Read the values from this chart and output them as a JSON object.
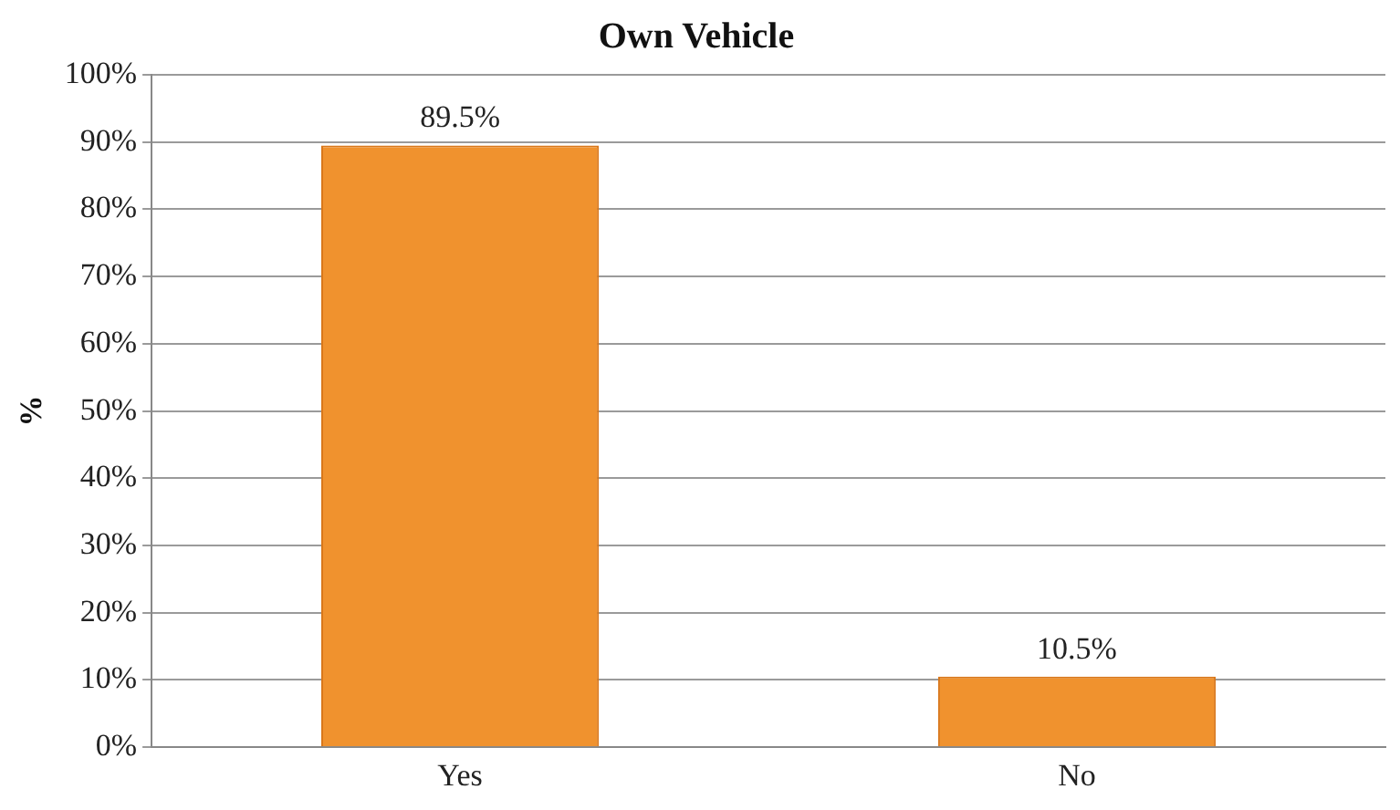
{
  "chart_data": {
    "type": "bar",
    "title": "Own Vehicle",
    "ylabel": "%",
    "categories": [
      "Yes",
      "No"
    ],
    "values": [
      89.5,
      10.5
    ],
    "value_labels": [
      "89.5%",
      "10.5%"
    ],
    "color": "#f0922e",
    "ylim": [
      0,
      100
    ],
    "yticks": [
      {
        "value": 0,
        "label": "0%"
      },
      {
        "value": 10,
        "label": "10%"
      },
      {
        "value": 20,
        "label": "20%"
      },
      {
        "value": 30,
        "label": "30%"
      },
      {
        "value": 40,
        "label": "40%"
      },
      {
        "value": 50,
        "label": "50%"
      },
      {
        "value": 60,
        "label": "60%"
      },
      {
        "value": 70,
        "label": "70%"
      },
      {
        "value": 80,
        "label": "80%"
      },
      {
        "value": 90,
        "label": "90%"
      },
      {
        "value": 100,
        "label": "100%"
      }
    ],
    "grid": "y",
    "legend": false
  }
}
